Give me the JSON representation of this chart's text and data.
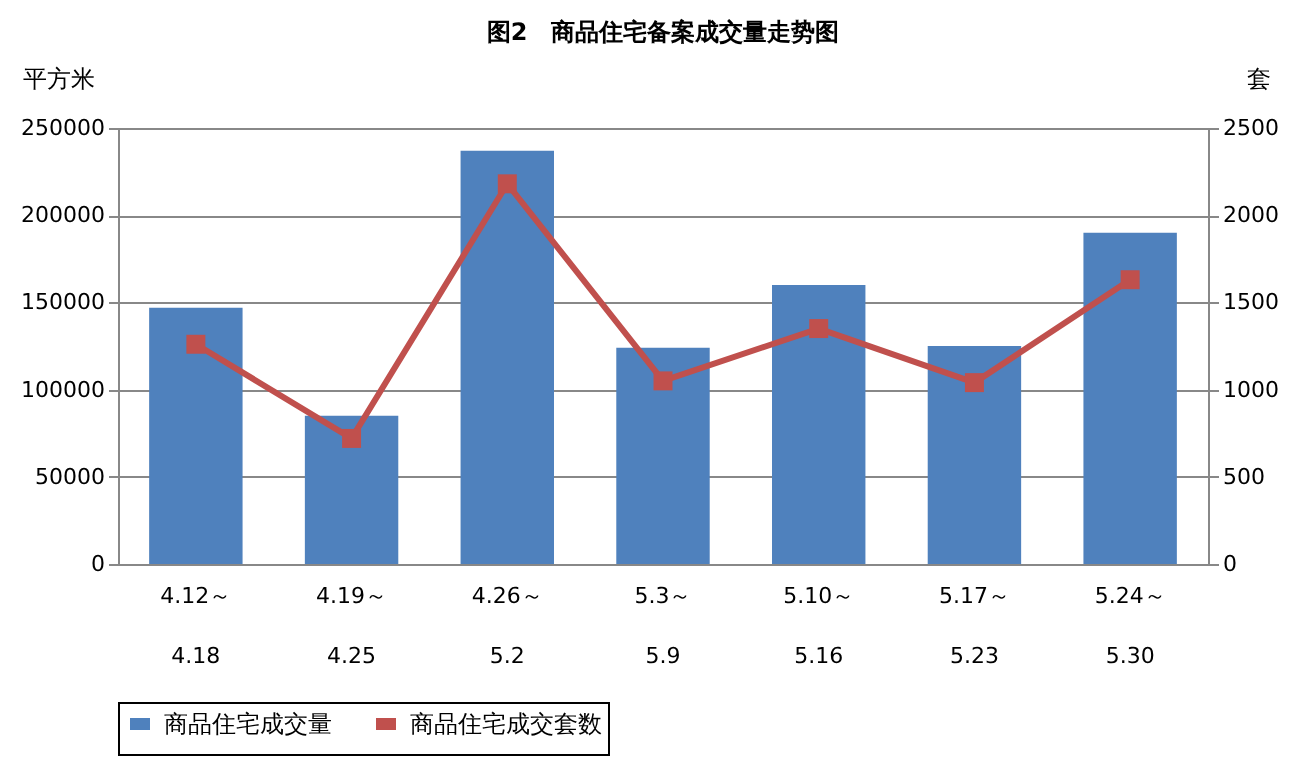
{
  "chart_data": {
    "type": "bar",
    "title": "图2　商品住宅备案成交量走势图",
    "ylabel": "平方米",
    "y2label": "套",
    "categories": [
      "4.12～\n4.18",
      "4.19～\n4.25",
      "4.26～\n5.2",
      "5.3～\n5.9",
      "5.10～\n5.16",
      "5.17～\n5.23",
      "5.24～\n5.30"
    ],
    "series": [
      {
        "name": "商品住宅成交量",
        "color": "#4f81bd",
        "values": [
          147000,
          85000,
          237000,
          124000,
          160000,
          125000,
          190000
        ]
      },
      {
        "name": "商品住宅成交套数",
        "type": "line",
        "axis": "y2",
        "color": "#c0504d",
        "marker": "square",
        "values": [
          1260,
          720,
          2180,
          1050,
          1350,
          1040,
          1630
        ]
      }
    ],
    "ylim": [
      0,
      250000
    ],
    "yticks": [
      0,
      50000,
      100000,
      150000,
      200000,
      250000
    ],
    "y2lim": [
      0,
      2500
    ],
    "y2ticks": [
      0,
      500,
      1000,
      1500,
      2000,
      2500
    ],
    "grid": "y",
    "legend": "bottom"
  }
}
